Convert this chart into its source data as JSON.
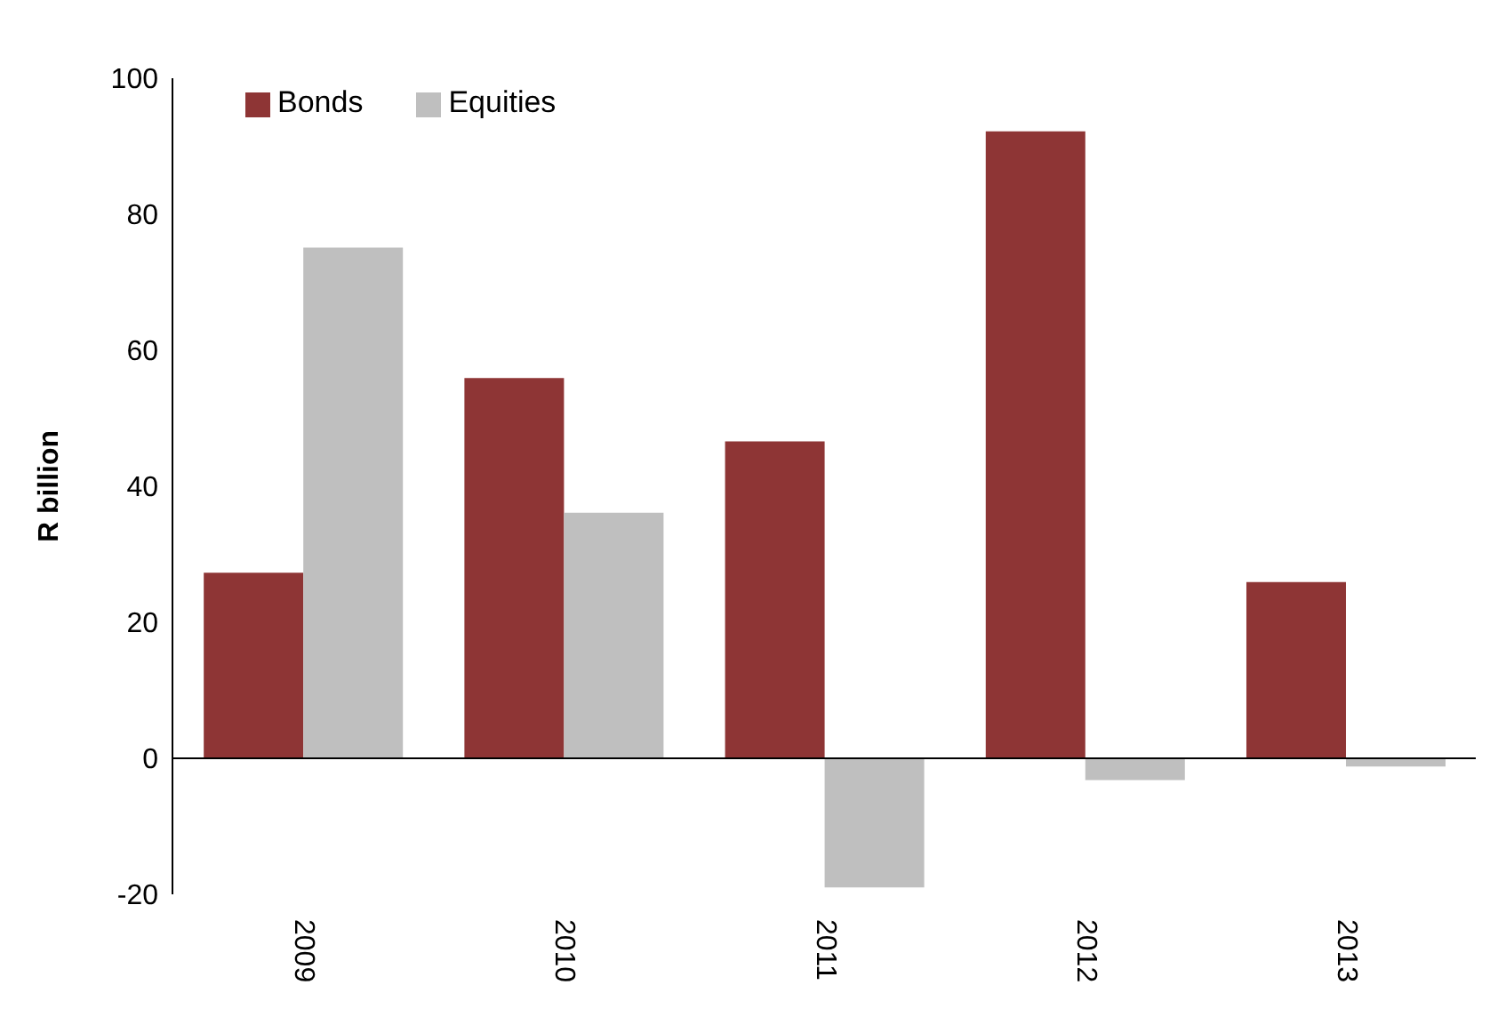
{
  "chart_data": {
    "type": "bar",
    "ylabel": "R billion",
    "categories": [
      "2009",
      "2010",
      "2011",
      "2012",
      "2013"
    ],
    "series": [
      {
        "name": "Bonds",
        "color": "#8e3535",
        "values": [
          27.3,
          55.9,
          46.6,
          92.2,
          25.9
        ]
      },
      {
        "name": "Equities",
        "color": "#bfbfbf",
        "values": [
          75.1,
          36.1,
          -19,
          -3.2,
          -1.2
        ]
      }
    ],
    "ylim": [
      -20,
      100
    ],
    "yticks": [
      -20,
      0,
      20,
      40,
      60,
      80,
      100
    ],
    "legend": "top left"
  }
}
